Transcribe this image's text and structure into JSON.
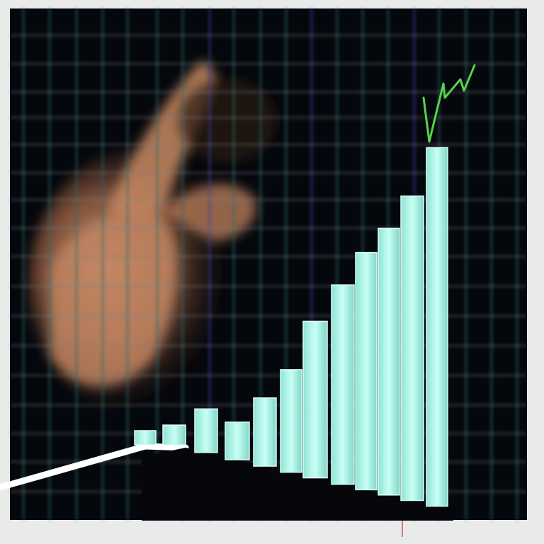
{
  "scene": {
    "description_visible_text": "",
    "colors": {
      "frame": "#e9eaea",
      "panel": "#04070c",
      "bar_fill": "#aef5e8",
      "bar_edge": "#dcfff8",
      "grid_main": "#2a6b6b",
      "grid_accent": "#3b3fb0",
      "skin": "#c98d67",
      "arrow": "#57d34a",
      "base_line": "#ffffff"
    },
    "bars": [
      {
        "level": 0.03
      },
      {
        "level": 0.07
      },
      {
        "level": 0.11
      },
      {
        "level": 0.2
      },
      {
        "level": 0.26
      },
      {
        "level": 0.33
      },
      {
        "level": 0.45
      },
      {
        "level": 0.54
      },
      {
        "level": 0.62
      },
      {
        "level": 0.68
      },
      {
        "level": 0.76
      },
      {
        "level": 0.88
      }
    ]
  }
}
